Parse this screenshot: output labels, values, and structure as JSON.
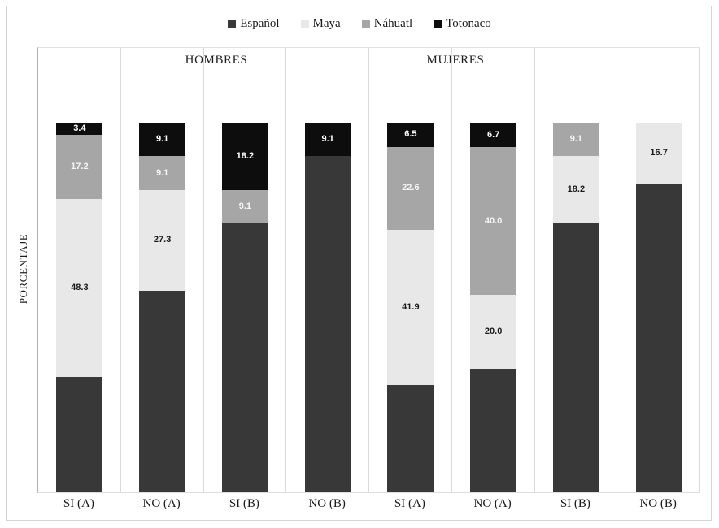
{
  "chart_data": {
    "type": "bar",
    "stacked": true,
    "unit": "percent",
    "ylabel": "PORCENTAJE",
    "ylim": [
      0,
      100
    ],
    "grid": "vertical-separators-only",
    "legend_position": "top",
    "group_titles": [
      "HOMBRES",
      "MUJERES"
    ],
    "groups": [
      {
        "name": "HOMBRES",
        "categories": [
          "SI (A)",
          "NO (A)",
          "SI (B)",
          "NO (B)"
        ]
      },
      {
        "name": "MUJERES",
        "categories": [
          "SI (A)",
          "NO (A)",
          "SI (B)",
          "NO (B)"
        ]
      }
    ],
    "categories": [
      "SI (A)",
      "NO (A)",
      "SI (B)",
      "NO (B)",
      "SI (A)",
      "NO (A)",
      "SI (B)",
      "NO (B)"
    ],
    "series": [
      {
        "name": "Español",
        "color": "#383838",
        "label_color": "#ffffff",
        "labels_shown": false,
        "values": [
          31.1,
          54.5,
          72.7,
          90.9,
          29.0,
          33.3,
          72.7,
          83.3
        ]
      },
      {
        "name": "Maya",
        "color": "#e8e8e8",
        "label_color": "#1a1a1a",
        "labels_shown": true,
        "values": [
          48.3,
          27.3,
          0,
          0,
          41.9,
          20.0,
          18.2,
          16.7
        ]
      },
      {
        "name": "Náhuatl",
        "color": "#a6a6a6",
        "label_color": "#f5f5f5",
        "labels_shown": true,
        "values": [
          17.2,
          9.1,
          9.1,
          0,
          22.6,
          40.0,
          9.1,
          0
        ]
      },
      {
        "name": "Totonaco",
        "color": "#0d0d0d",
        "label_color": "#ffffff",
        "labels_shown": true,
        "values": [
          3.4,
          9.1,
          18.2,
          9.1,
          6.5,
          6.7,
          0,
          0
        ]
      }
    ],
    "visible_segment_labels": {
      "Maya": [
        "48.3",
        "27.3",
        "",
        "",
        "41.9",
        "20.0",
        "18.2",
        "16.7"
      ],
      "Náhuatl": [
        "17.2",
        "9.1",
        "9.1",
        "",
        "22.6",
        "40.0",
        "9.1",
        ""
      ],
      "Totonaco": [
        "3.4",
        "9.1",
        "18.2",
        "9.1",
        "6.5",
        "6.7",
        "",
        ""
      ]
    }
  }
}
